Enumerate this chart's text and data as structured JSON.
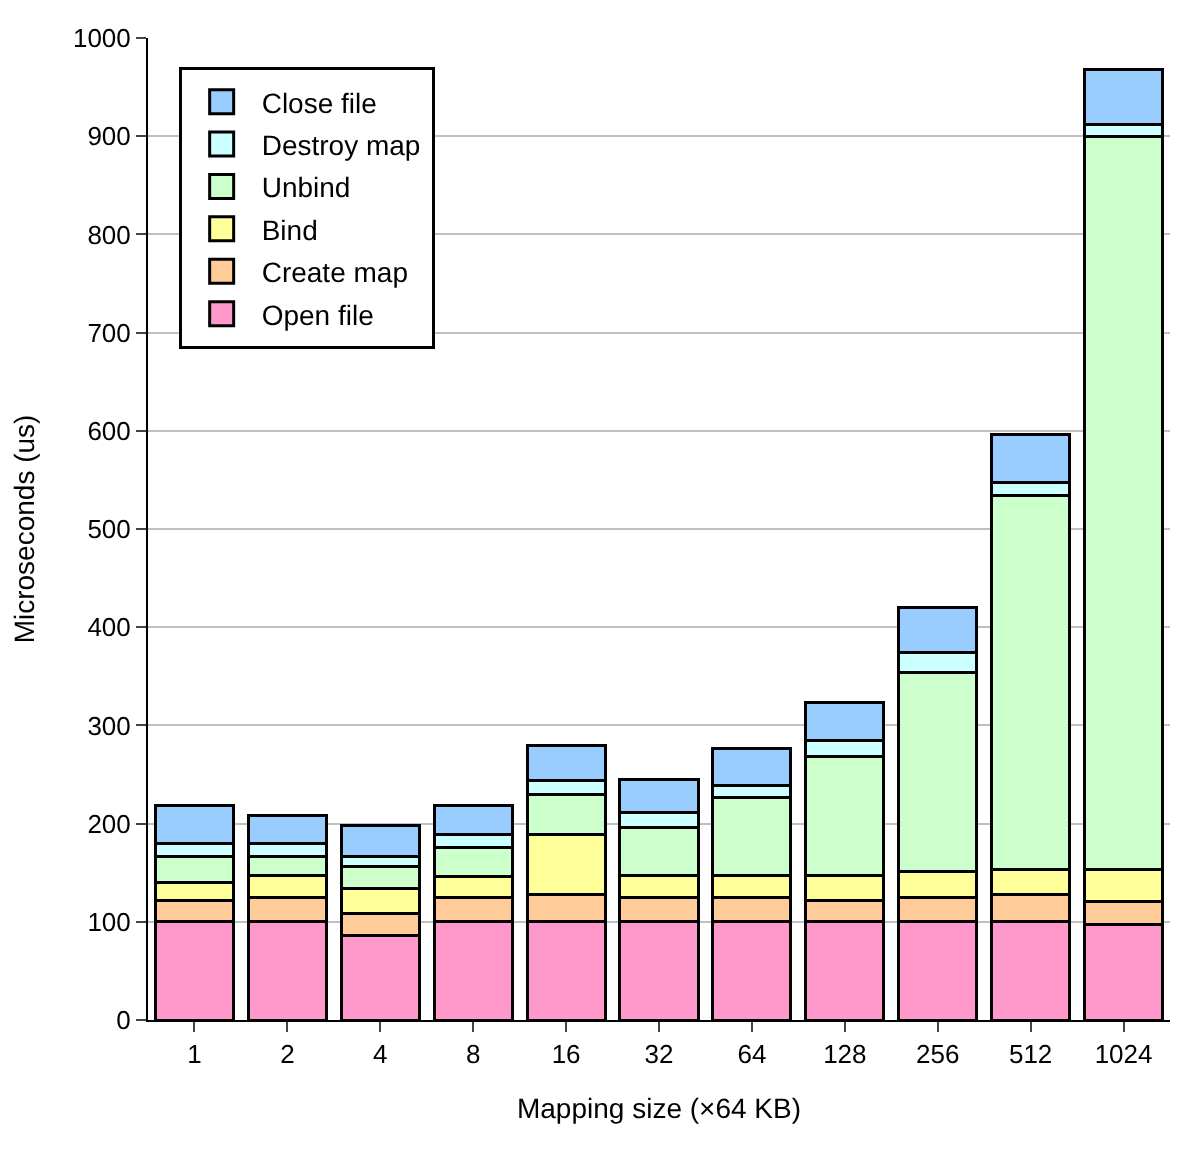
{
  "chart_data": {
    "type": "bar",
    "stacked": true,
    "xlabel": "Mapping size (×64 KB)",
    "ylabel": "Microseconds (us)",
    "categories": [
      "1",
      "2",
      "4",
      "8",
      "16",
      "32",
      "64",
      "128",
      "256",
      "512",
      "1024"
    ],
    "series": [
      {
        "name": "Open file",
        "color": "#ff99cc",
        "values": [
          100,
          100,
          86,
          100,
          100,
          100,
          100,
          100,
          100,
          100,
          97
        ]
      },
      {
        "name": "Create map",
        "color": "#ffcc99",
        "values": [
          22,
          25,
          22,
          25,
          28,
          25,
          25,
          22,
          25,
          28,
          24
        ]
      },
      {
        "name": "Bind",
        "color": "#ffff99",
        "values": [
          18,
          22,
          26,
          21,
          61,
          22,
          22,
          25,
          26,
          25,
          32
        ]
      },
      {
        "name": "Unbind",
        "color": "#ccffcc",
        "values": [
          26,
          19,
          22,
          30,
          41,
          49,
          80,
          121,
          203,
          381,
          747
        ]
      },
      {
        "name": "Destroy map",
        "color": "#ccffff",
        "values": [
          14,
          14,
          10,
          13,
          14,
          15,
          12,
          17,
          20,
          13,
          12
        ]
      },
      {
        "name": "Close file",
        "color": "#99ccff",
        "values": [
          38,
          28,
          32,
          29,
          36,
          34,
          37,
          38,
          46,
          49,
          56
        ]
      }
    ],
    "ylim": [
      0,
      1000
    ],
    "yticks": [
      0,
      100,
      200,
      300,
      400,
      500,
      600,
      700,
      800,
      900,
      1000
    ],
    "grid": "y",
    "legend": "top left"
  }
}
